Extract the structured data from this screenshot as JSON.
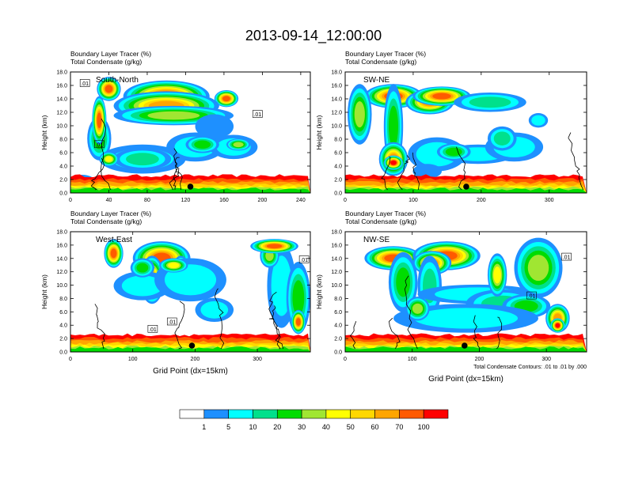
{
  "title": "2013-09-14_12:00:00",
  "chart_data": [
    {
      "type": "heatmap",
      "panel_label": "South-North",
      "title_lines": [
        "Boundary Layer Tracer   (%)",
        "Total Condensate   (g/kg)"
      ],
      "ylabel": "Height (km)",
      "xlabel": "",
      "xlim": [
        0,
        250
      ],
      "xticks": [
        "0",
        "40",
        "80",
        "120",
        "160",
        "200",
        "240"
      ],
      "xtick_values": [
        0,
        40,
        80,
        120,
        160,
        200,
        240
      ],
      "ylim": [
        0,
        18
      ],
      "yticks": [
        "0.0",
        "2.0",
        "4.0",
        "6.0",
        "8.0",
        "10.0",
        "12.0",
        "14.0",
        "16.0",
        "18.0"
      ],
      "marker_x": 125,
      "contour_labels": [
        {
          "text": ".01",
          "x": 15,
          "y": 16.3
        },
        {
          "text": ".01",
          "x": 30,
          "y": 7.2
        },
        {
          "text": ".01",
          "x": 195,
          "y": 11.7
        }
      ]
    },
    {
      "type": "heatmap",
      "panel_label": "SW-NE",
      "title_lines": [
        "Boundary Layer Tracer   (%)",
        "Total Condensate   (g/kg)"
      ],
      "ylabel": "Height (km)",
      "xlabel": "",
      "xlim": [
        0,
        355
      ],
      "xticks": [
        "0",
        "100",
        "200",
        "300"
      ],
      "xtick_values": [
        0,
        100,
        200,
        300
      ],
      "ylim": [
        0,
        18
      ],
      "yticks": [
        "0.0",
        "2.0",
        "4.0",
        "6.0",
        "8.0",
        "10.0",
        "12.0",
        "14.0",
        "16.0",
        "18.0"
      ],
      "marker_x": 178,
      "contour_labels": []
    },
    {
      "type": "heatmap",
      "panel_label": "West-East",
      "title_lines": [
        "Boundary Layer Tracer   (%)",
        "Total Condensate   (g/kg)"
      ],
      "ylabel": "Height (km)",
      "xlabel": "Grid Point (dx=15km)",
      "xlim": [
        0,
        385
      ],
      "xticks": [
        "0",
        "100",
        "200",
        "300"
      ],
      "xtick_values": [
        0,
        100,
        200,
        300
      ],
      "ylim": [
        0,
        18
      ],
      "yticks": [
        "0.0",
        "2.0",
        "4.0",
        "6.0",
        "8.0",
        "10.0",
        "12.0",
        "14.0",
        "16.0",
        "18.0"
      ],
      "marker_x": 195,
      "contour_labels": [
        {
          "text": ".01",
          "x": 132,
          "y": 3.4
        },
        {
          "text": ".01",
          "x": 163,
          "y": 4.5
        },
        {
          "text": ".01",
          "x": 375,
          "y": 13.8
        }
      ]
    },
    {
      "type": "heatmap",
      "panel_label": "NW-SE",
      "title_lines": [
        "Boundary Layer Tracer   (%)",
        "Total Condensate   (g/kg)"
      ],
      "ylabel": "Height (km)",
      "xlabel": "Grid Point (dx=15km)",
      "xlim": [
        0,
        360
      ],
      "xticks": [
        "0",
        "100",
        "200",
        "300"
      ],
      "xtick_values": [
        0,
        100,
        200,
        300
      ],
      "ylim": [
        0,
        18
      ],
      "yticks": [
        "0.0",
        "2.0",
        "4.0",
        "6.0",
        "8.0",
        "10.0",
        "12.0",
        "14.0",
        "16.0",
        "18.0"
      ],
      "marker_x": 178,
      "contour_labels": [
        {
          "text": ".01",
          "x": 278,
          "y": 8.4
        },
        {
          "text": ".01",
          "x": 330,
          "y": 14.2
        }
      ],
      "footnote": "Total Condensate Contours: .01 to .01 by .000"
    }
  ],
  "colorbar": {
    "levels": [
      "1",
      "5",
      "10",
      "20",
      "30",
      "40",
      "50",
      "60",
      "70",
      "100"
    ],
    "colors": [
      "#ffffff",
      "#1e90ff",
      "#00ffff",
      "#00e08c",
      "#00dc00",
      "#a0e632",
      "#ffff00",
      "#ffd700",
      "#ffa500",
      "#ff5a00",
      "#ff0000"
    ]
  }
}
